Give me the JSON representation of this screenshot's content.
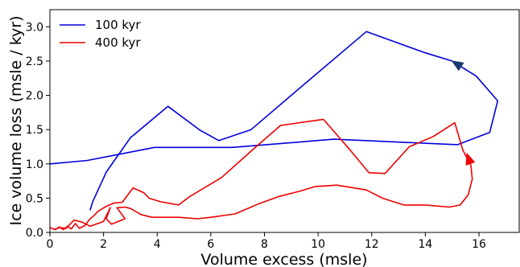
{
  "chart_data": {
    "type": "line",
    "xlabel": "Volume excess (msle)",
    "ylabel": "Ice volume loss (msle / kyr)",
    "xlim": [
      0,
      17.5
    ],
    "ylim": [
      0,
      3.25
    ],
    "xticks": [
      0,
      2,
      4,
      6,
      8,
      10,
      12,
      14,
      16
    ],
    "yticks": [
      0.0,
      0.5,
      1.0,
      1.5,
      2.0,
      2.5,
      3.0
    ],
    "ytick_labels": [
      "0.0",
      "0.5",
      "1.0",
      "1.5",
      "2.0",
      "2.5",
      "3.0"
    ],
    "grid": false,
    "legend_position": "top-left",
    "series": [
      {
        "name": "100 kyr",
        "color": "#0000dd",
        "points": [
          [
            0.0,
            1.0
          ],
          [
            1.4,
            1.05
          ],
          [
            3.9,
            1.24
          ],
          [
            6.8,
            1.24
          ],
          [
            10.6,
            1.36
          ],
          [
            15.2,
            1.28
          ],
          [
            16.4,
            1.46
          ],
          [
            16.7,
            1.92
          ],
          [
            15.9,
            2.28
          ],
          [
            15.0,
            2.5
          ],
          [
            14.0,
            2.62
          ],
          [
            11.8,
            2.93
          ],
          [
            9.3,
            2.1
          ],
          [
            7.5,
            1.5
          ],
          [
            6.3,
            1.34
          ],
          [
            5.6,
            1.49
          ],
          [
            4.4,
            1.84
          ],
          [
            3.0,
            1.38
          ],
          [
            2.1,
            0.88
          ],
          [
            1.6,
            0.45
          ],
          [
            1.5,
            0.33
          ]
        ]
      },
      {
        "name": "400 kyr",
        "color": "#ee0000",
        "points": [
          [
            0.0,
            0.07
          ],
          [
            0.2,
            0.04
          ],
          [
            0.35,
            0.08
          ],
          [
            0.5,
            0.04
          ],
          [
            0.65,
            0.09
          ],
          [
            0.8,
            0.05
          ],
          [
            0.95,
            0.13
          ],
          [
            1.1,
            0.06
          ],
          [
            1.3,
            0.1
          ],
          [
            1.5,
            0.2
          ],
          [
            1.6,
            0.23
          ],
          [
            1.8,
            0.31
          ],
          [
            2.1,
            0.38
          ],
          [
            2.4,
            0.43
          ],
          [
            2.7,
            0.44
          ],
          [
            3.1,
            0.65
          ],
          [
            3.5,
            0.58
          ],
          [
            3.7,
            0.5
          ],
          [
            4.1,
            0.45
          ],
          [
            4.8,
            0.4
          ],
          [
            5.2,
            0.52
          ],
          [
            6.4,
            0.8
          ],
          [
            7.6,
            1.22
          ],
          [
            8.6,
            1.56
          ],
          [
            10.2,
            1.65
          ],
          [
            11.2,
            1.2
          ],
          [
            11.9,
            0.87
          ],
          [
            12.5,
            0.86
          ],
          [
            13.4,
            1.25
          ],
          [
            14.3,
            1.4
          ],
          [
            15.1,
            1.6
          ],
          [
            15.4,
            1.2
          ],
          [
            15.7,
            0.98
          ],
          [
            15.75,
            0.78
          ],
          [
            15.6,
            0.55
          ],
          [
            15.3,
            0.4
          ],
          [
            14.9,
            0.37
          ],
          [
            14.0,
            0.4
          ],
          [
            13.2,
            0.4
          ],
          [
            12.4,
            0.5
          ],
          [
            11.8,
            0.62
          ],
          [
            10.7,
            0.69
          ],
          [
            9.9,
            0.67
          ],
          [
            9.3,
            0.6
          ],
          [
            8.5,
            0.52
          ],
          [
            7.8,
            0.42
          ],
          [
            6.9,
            0.27
          ],
          [
            6.0,
            0.22
          ],
          [
            5.5,
            0.2
          ],
          [
            4.8,
            0.22
          ],
          [
            3.8,
            0.22
          ],
          [
            3.4,
            0.26
          ],
          [
            3.0,
            0.35
          ],
          [
            2.8,
            0.37
          ],
          [
            2.5,
            0.36
          ],
          [
            2.8,
            0.2
          ],
          [
            2.3,
            0.12
          ],
          [
            2.1,
            0.2
          ],
          [
            2.25,
            0.36
          ],
          [
            2.0,
            0.16
          ],
          [
            1.5,
            0.09
          ],
          [
            1.2,
            0.15
          ],
          [
            0.9,
            0.18
          ],
          [
            0.75,
            0.12
          ],
          [
            0.6,
            0.06
          ],
          [
            0.4,
            0.07
          ],
          [
            0.2,
            0.05
          ]
        ]
      }
    ],
    "arrows": [
      {
        "series": 0,
        "color": "#1a3a6e",
        "at": [
          15.0,
          2.5
        ],
        "direction_from": [
          15.9,
          2.28
        ]
      },
      {
        "series": 1,
        "color": "#ee0000",
        "at": [
          15.55,
          1.15
        ],
        "direction_from": [
          15.7,
          0.98
        ]
      }
    ]
  }
}
